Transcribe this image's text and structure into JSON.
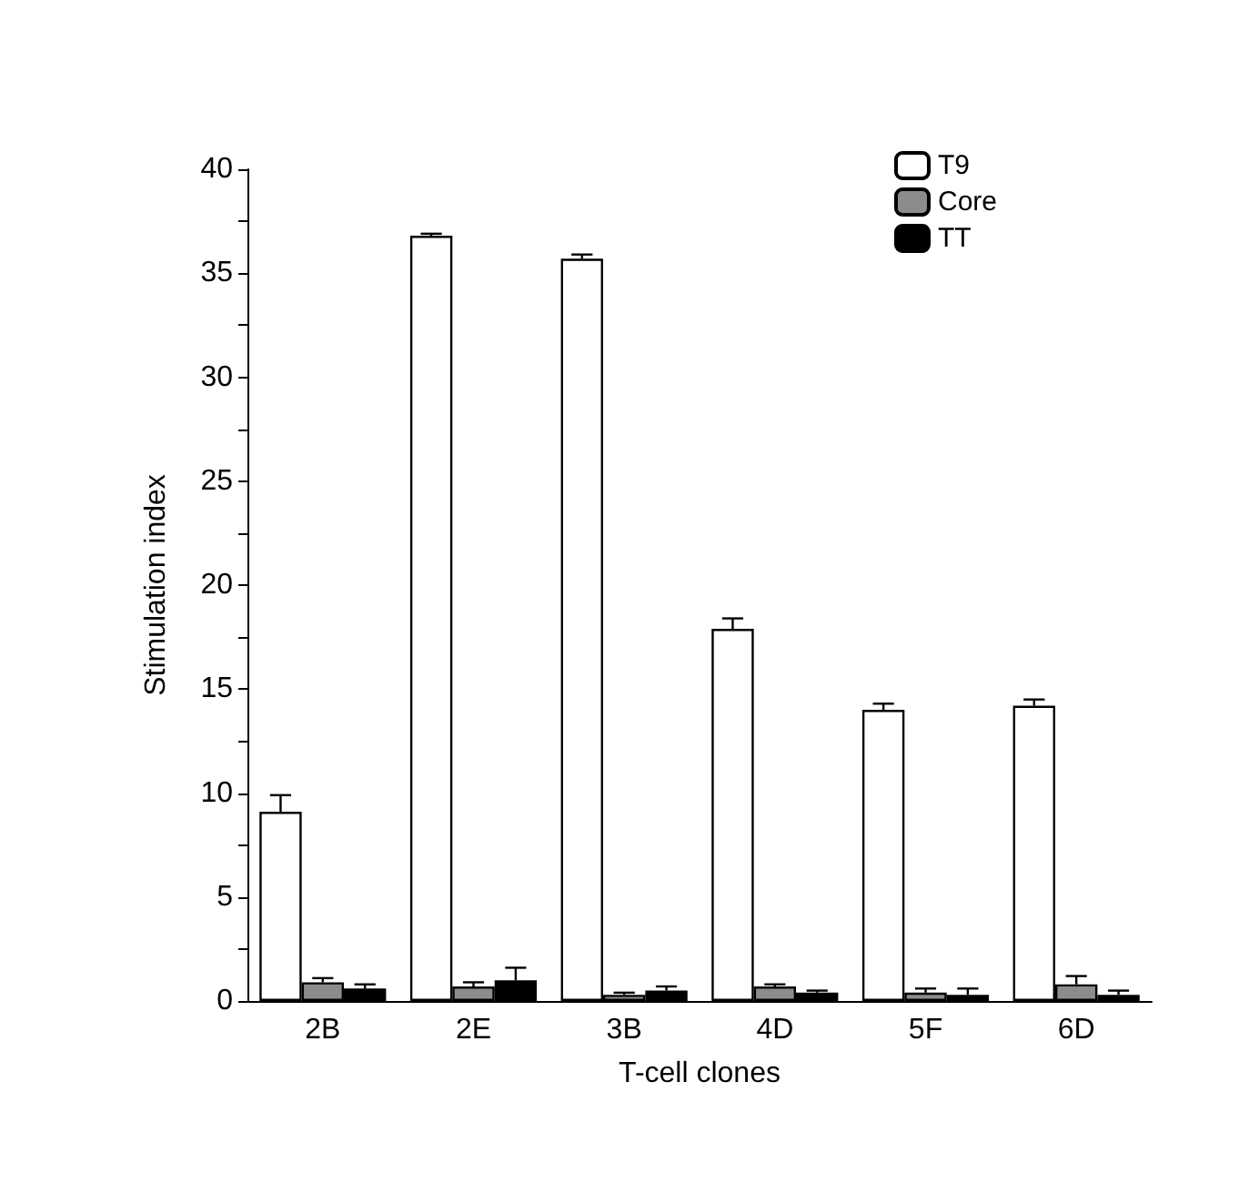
{
  "chart_data": {
    "type": "bar",
    "xlabel": "T-cell clones",
    "ylabel": "Stimulation index",
    "categories": [
      "2B",
      "2E",
      "3B",
      "4D",
      "5F",
      "6D"
    ],
    "series": [
      {
        "name": "T9",
        "color": "#ffffff",
        "values": [
          9.1,
          36.8,
          35.7,
          17.9,
          14.0,
          14.2
        ],
        "errors": [
          0.8,
          0.1,
          0.2,
          0.5,
          0.3,
          0.3
        ]
      },
      {
        "name": "Core",
        "color": "#8c8c8c",
        "values": [
          0.9,
          0.7,
          0.3,
          0.7,
          0.4,
          0.8
        ],
        "errors": [
          0.2,
          0.2,
          0.1,
          0.1,
          0.2,
          0.4
        ]
      },
      {
        "name": "TT",
        "color": "#000000",
        "values": [
          0.6,
          1.0,
          0.5,
          0.4,
          0.3,
          0.3
        ],
        "errors": [
          0.2,
          0.6,
          0.2,
          0.1,
          0.3,
          0.2
        ]
      }
    ],
    "ylim": [
      0,
      40
    ],
    "yticks": [
      0,
      {
        "value": 2.5,
        "label": null
      },
      5,
      {
        "value": 7.5,
        "label": null
      },
      10,
      {
        "value": 12.5,
        "label": null
      },
      15,
      {
        "value": 17.5,
        "label": null
      },
      20,
      {
        "value": 22.5,
        "label": null
      },
      25,
      {
        "value": 27.5,
        "label": null
      },
      30,
      {
        "value": 32.5,
        "label": null
      },
      35,
      {
        "value": 37.5,
        "label": null
      },
      40
    ],
    "grid": false,
    "legend": "top right"
  }
}
